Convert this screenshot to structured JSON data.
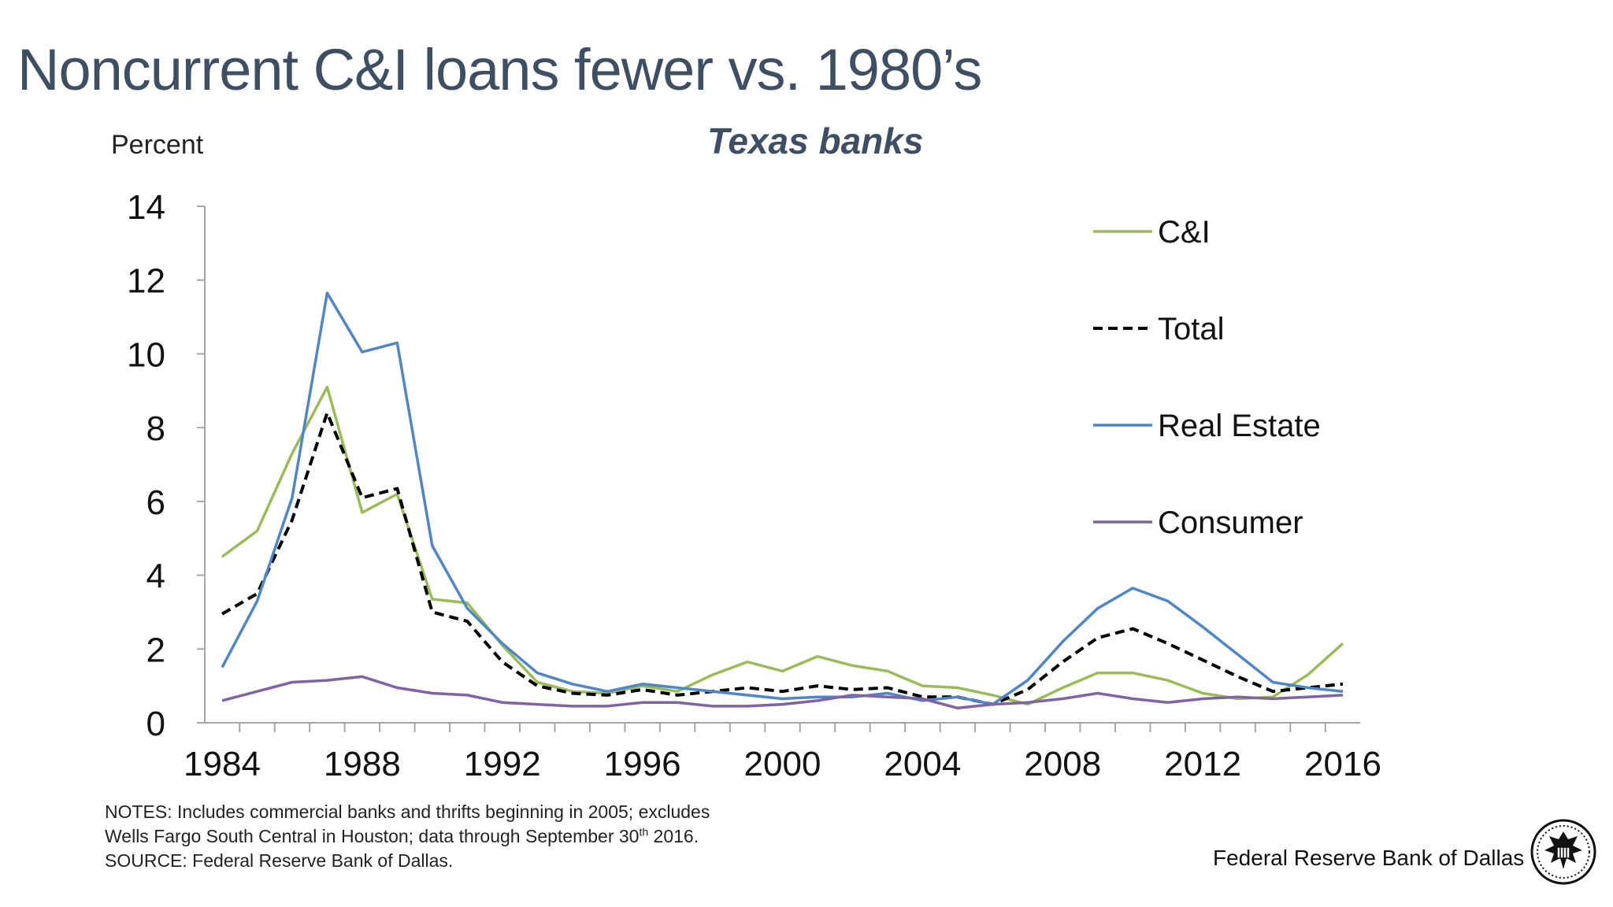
{
  "header": {
    "title": "Noncurrent C&I loans fewer vs. 1980’s",
    "subtitle": "Texas banks"
  },
  "chart_data": {
    "type": "line",
    "title": "Texas banks",
    "ylabel": "Percent",
    "xlabel": "",
    "xlim": [
      1984,
      2016
    ],
    "ylim": [
      0,
      14
    ],
    "x_ticks": [
      1984,
      1988,
      1992,
      1996,
      2000,
      2004,
      2008,
      2012,
      2016
    ],
    "y_ticks": [
      0,
      2,
      4,
      6,
      8,
      10,
      12,
      14
    ],
    "grid": false,
    "legend_position": "right",
    "x": [
      1984,
      1985,
      1986,
      1987,
      1988,
      1989,
      1990,
      1991,
      1992,
      1993,
      1994,
      1995,
      1996,
      1997,
      1998,
      1999,
      2000,
      2001,
      2002,
      2003,
      2004,
      2005,
      2006,
      2007,
      2008,
      2009,
      2010,
      2011,
      2012,
      2013,
      2014,
      2015,
      2016
    ],
    "series": [
      {
        "name": "C&I",
        "color": "#9bbb59",
        "dash": "solid",
        "values": [
          4.5,
          5.2,
          7.3,
          9.1,
          5.7,
          6.2,
          3.35,
          3.25,
          2.1,
          1.1,
          0.85,
          0.8,
          1.0,
          0.85,
          1.3,
          1.65,
          1.4,
          1.8,
          1.55,
          1.4,
          1.0,
          0.95,
          0.75,
          0.5,
          0.95,
          1.35,
          1.35,
          1.15,
          0.8,
          0.65,
          0.7,
          1.3,
          2.15
        ]
      },
      {
        "name": "Total",
        "color": "#000000",
        "dash": "dashed",
        "values": [
          2.95,
          3.5,
          5.5,
          8.4,
          6.1,
          6.35,
          3.0,
          2.75,
          1.65,
          1.0,
          0.8,
          0.75,
          0.9,
          0.75,
          0.85,
          0.95,
          0.85,
          1.0,
          0.9,
          0.95,
          0.7,
          0.7,
          0.5,
          0.9,
          1.65,
          2.3,
          2.55,
          2.15,
          1.7,
          1.25,
          0.85,
          0.95,
          1.05
        ]
      },
      {
        "name": "Real Estate",
        "color": "#4f86c6",
        "dash": "solid",
        "values": [
          1.5,
          3.3,
          6.1,
          11.65,
          10.05,
          10.3,
          4.8,
          3.1,
          2.15,
          1.35,
          1.05,
          0.85,
          1.05,
          0.95,
          0.85,
          0.75,
          0.65,
          0.7,
          0.7,
          0.8,
          0.6,
          0.7,
          0.5,
          1.15,
          2.2,
          3.1,
          3.65,
          3.3,
          2.6,
          1.85,
          1.1,
          0.95,
          0.85
        ]
      },
      {
        "name": "Consumer",
        "color": "#8064a2",
        "dash": "solid",
        "values": [
          0.6,
          0.85,
          1.1,
          1.15,
          1.25,
          0.95,
          0.8,
          0.75,
          0.55,
          0.5,
          0.45,
          0.45,
          0.55,
          0.55,
          0.45,
          0.45,
          0.5,
          0.6,
          0.75,
          0.7,
          0.65,
          0.4,
          0.5,
          0.55,
          0.65,
          0.8,
          0.65,
          0.55,
          0.65,
          0.7,
          0.65,
          0.7,
          0.75
        ]
      }
    ]
  },
  "notes": {
    "line1": "NOTES: Includes commercial banks and thrifts beginning in 2005; excludes",
    "line2_pre": "Wells Fargo South Central in Houston; data through September 30",
    "line2_sup": "th",
    "line2_post": " 2016.",
    "line3": "SOURCE: Federal Reserve Bank of Dallas."
  },
  "footer": {
    "org": "Federal Reserve Bank of Dallas",
    "logo_icon": "federal-reserve-seal-icon"
  }
}
